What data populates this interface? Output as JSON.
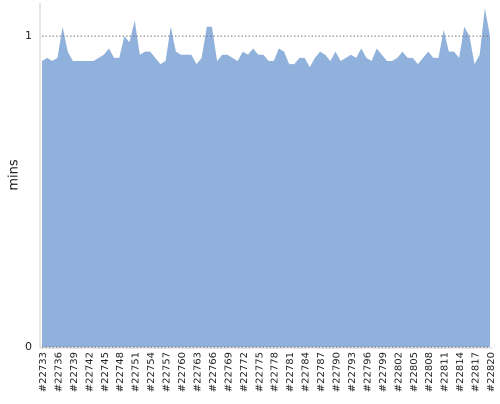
{
  "chart_data": {
    "type": "area",
    "y_label": "mins",
    "categories": [
      "#22733",
      null,
      null,
      "#22736",
      null,
      null,
      "#22739",
      null,
      null,
      "#22742",
      null,
      null,
      "#22745",
      null,
      null,
      "#22748",
      null,
      null,
      "#22751",
      null,
      null,
      "#22754",
      null,
      null,
      "#22757",
      null,
      null,
      "#22760",
      null,
      null,
      "#22763",
      null,
      null,
      "#22766",
      null,
      null,
      "#22769",
      null,
      null,
      "#22772",
      null,
      null,
      "#22775",
      null,
      null,
      "#22778",
      null,
      null,
      "#22781",
      null,
      null,
      "#22784",
      null,
      null,
      "#22787",
      null,
      null,
      "#22790",
      null,
      null,
      "#22793",
      null,
      null,
      "#22796",
      null,
      null,
      "#22799",
      null,
      null,
      "#22802",
      null,
      null,
      "#22805",
      null,
      null,
      "#22808",
      null,
      null,
      "#22811",
      null,
      null,
      "#22814",
      null,
      null,
      "#22817",
      null,
      null,
      "#22820"
    ],
    "values": [
      0.92,
      0.93,
      0.92,
      0.93,
      1.03,
      0.95,
      0.92,
      0.92,
      0.92,
      0.92,
      0.92,
      0.93,
      0.94,
      0.96,
      0.93,
      0.93,
      1.0,
      0.98,
      1.05,
      0.94,
      0.95,
      0.95,
      0.93,
      0.91,
      0.92,
      1.03,
      0.95,
      0.94,
      0.94,
      0.94,
      0.91,
      0.93,
      1.03,
      1.03,
      0.92,
      0.94,
      0.94,
      0.93,
      0.92,
      0.95,
      0.94,
      0.96,
      0.94,
      0.94,
      0.92,
      0.92,
      0.96,
      0.95,
      0.91,
      0.91,
      0.93,
      0.93,
      0.9,
      0.93,
      0.95,
      0.94,
      0.92,
      0.95,
      0.92,
      0.93,
      0.94,
      0.93,
      0.96,
      0.93,
      0.92,
      0.96,
      0.94,
      0.92,
      0.92,
      0.93,
      0.95,
      0.93,
      0.93,
      0.91,
      0.93,
      0.95,
      0.93,
      0.93,
      1.02,
      0.95,
      0.95,
      0.93,
      1.03,
      1.0,
      0.91,
      0.94,
      1.09,
      1.0
    ],
    "color": "#90b1dc",
    "ylim": [
      0,
      1.1
    ],
    "yticks": [
      0,
      1
    ],
    "grid": true
  }
}
